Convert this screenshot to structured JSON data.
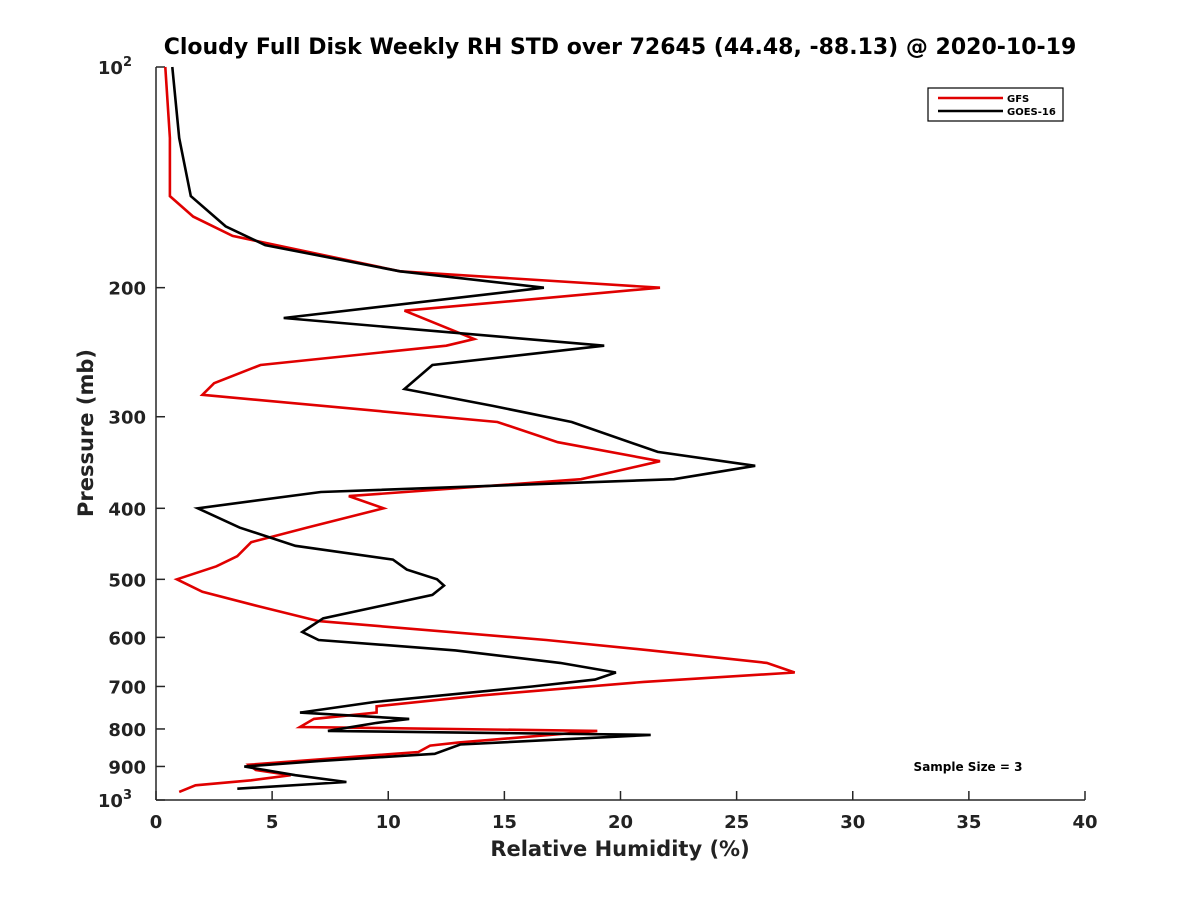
{
  "chart_data": {
    "type": "line",
    "title": "Cloudy Full Disk Weekly RH STD over 72645 (44.48, -88.13) @ 2020-10-19",
    "xlabel": "Relative Humidity (%)",
    "ylabel": "Pressure (mb)",
    "xlim": [
      0,
      40
    ],
    "ylim": [
      100,
      1000
    ],
    "y_scale": "log",
    "y_reversed": true,
    "grid": false,
    "legend_position": "top-right",
    "x_ticks": [
      "0",
      "5",
      "10",
      "15",
      "20",
      "25",
      "30",
      "35",
      "40"
    ],
    "y_ticks": [
      {
        "value": 100,
        "label": "10",
        "sup": "2"
      },
      {
        "value": 200,
        "label": "200",
        "sup": ""
      },
      {
        "value": 300,
        "label": "300",
        "sup": ""
      },
      {
        "value": 400,
        "label": "400",
        "sup": ""
      },
      {
        "value": 500,
        "label": "500",
        "sup": ""
      },
      {
        "value": 600,
        "label": "600",
        "sup": ""
      },
      {
        "value": 700,
        "label": "700",
        "sup": ""
      },
      {
        "value": 800,
        "label": "800",
        "sup": ""
      },
      {
        "value": 900,
        "label": "900",
        "sup": ""
      },
      {
        "value": 1000,
        "label": "10",
        "sup": "3"
      }
    ],
    "annotation": "Sample Size = 3",
    "series": [
      {
        "name": "GFS",
        "color": "#e00000",
        "points": [
          [
            0.4,
            100
          ],
          [
            0.6,
            125
          ],
          [
            0.6,
            150
          ],
          [
            1.6,
            160
          ],
          [
            3.3,
            170
          ],
          [
            10.5,
            190
          ],
          [
            21.7,
            200
          ],
          [
            10.7,
            215
          ],
          [
            13.7,
            235
          ],
          [
            12.5,
            240
          ],
          [
            4.5,
            255
          ],
          [
            2.5,
            270
          ],
          [
            2.0,
            280
          ],
          [
            14.7,
            305
          ],
          [
            17.3,
            325
          ],
          [
            21.7,
            345
          ],
          [
            18.3,
            365
          ],
          [
            8.3,
            385
          ],
          [
            9.8,
            400
          ],
          [
            6.5,
            425
          ],
          [
            4.1,
            445
          ],
          [
            3.5,
            465
          ],
          [
            2.6,
            480
          ],
          [
            0.9,
            500
          ],
          [
            2.0,
            520
          ],
          [
            4.5,
            545
          ],
          [
            7.0,
            570
          ],
          [
            16.8,
            605
          ],
          [
            21.3,
            625
          ],
          [
            26.3,
            650
          ],
          [
            27.5,
            670
          ],
          [
            21.0,
            690
          ],
          [
            14.0,
            720
          ],
          [
            9.5,
            745
          ],
          [
            9.5,
            760
          ],
          [
            6.8,
            775
          ],
          [
            6.2,
            795
          ],
          [
            19.0,
            805
          ],
          [
            13.0,
            835
          ],
          [
            11.8,
            843
          ],
          [
            11.3,
            860
          ],
          [
            4.0,
            895
          ],
          [
            4.3,
            910
          ],
          [
            5.8,
            925
          ],
          [
            4.1,
            940
          ],
          [
            1.7,
            955
          ],
          [
            1.0,
            975
          ]
        ]
      },
      {
        "name": "GOES-16",
        "color": "#000000",
        "points": [
          [
            0.7,
            100
          ],
          [
            1.0,
            125
          ],
          [
            1.5,
            150
          ],
          [
            3.0,
            165
          ],
          [
            4.7,
            175
          ],
          [
            10.5,
            190
          ],
          [
            16.7,
            200
          ],
          [
            5.5,
            220
          ],
          [
            19.3,
            240
          ],
          [
            11.9,
            255
          ],
          [
            10.7,
            275
          ],
          [
            14.5,
            290
          ],
          [
            17.9,
            305
          ],
          [
            21.6,
            335
          ],
          [
            25.8,
            350
          ],
          [
            22.3,
            365
          ],
          [
            7.1,
            380
          ],
          [
            1.8,
            400
          ],
          [
            3.6,
            425
          ],
          [
            6.0,
            450
          ],
          [
            10.2,
            470
          ],
          [
            10.8,
            485
          ],
          [
            12.1,
            500
          ],
          [
            12.4,
            510
          ],
          [
            11.9,
            525
          ],
          [
            7.2,
            565
          ],
          [
            6.3,
            590
          ],
          [
            7.0,
            605
          ],
          [
            12.9,
            625
          ],
          [
            17.4,
            650
          ],
          [
            19.8,
            670
          ],
          [
            18.9,
            685
          ],
          [
            16.2,
            700
          ],
          [
            9.4,
            735
          ],
          [
            6.2,
            760
          ],
          [
            10.9,
            775
          ],
          [
            9.5,
            785
          ],
          [
            7.4,
            805
          ],
          [
            21.3,
            815
          ],
          [
            13.1,
            840
          ],
          [
            12.0,
            865
          ],
          [
            7.0,
            885
          ],
          [
            3.8,
            900
          ],
          [
            6.0,
            925
          ],
          [
            8.2,
            945
          ],
          [
            3.5,
            965
          ]
        ]
      }
    ]
  }
}
